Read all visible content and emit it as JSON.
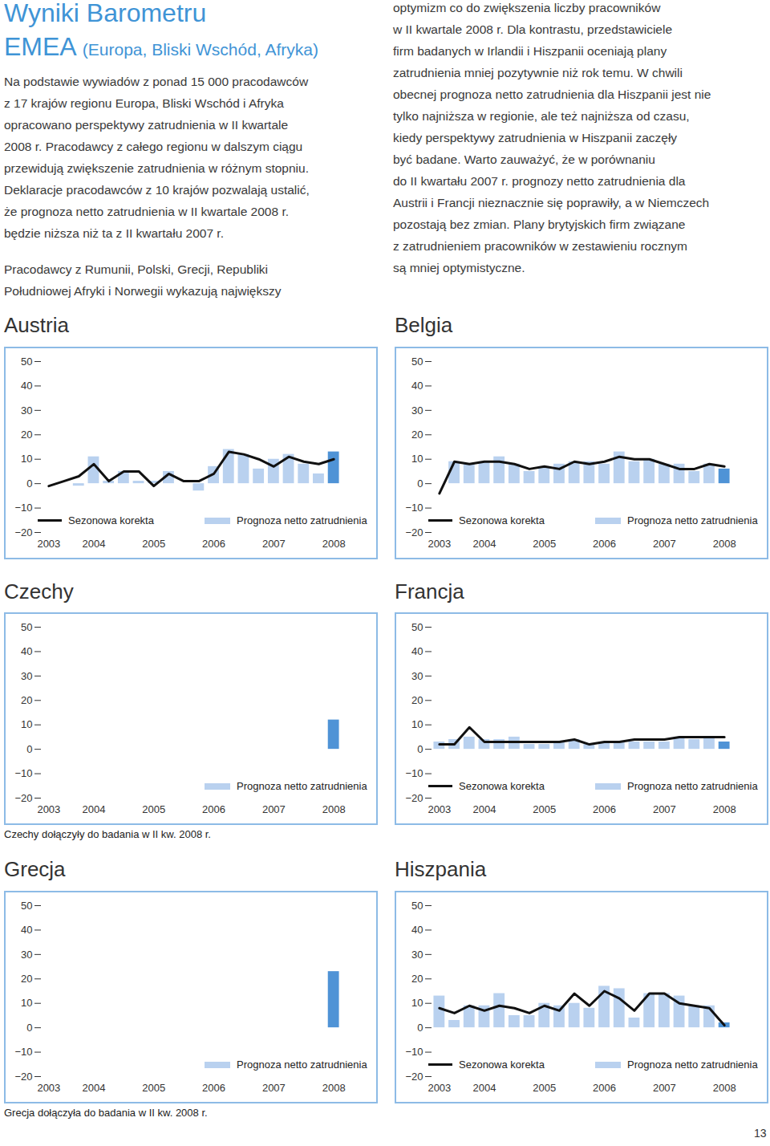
{
  "header": {
    "title": "Wyniki Barometru",
    "title_line2": "EMEA",
    "title_suffix": "(Europa, Bliski Wschód, Afryka)"
  },
  "columns": {
    "left": [
      [
        "Na podstawie wywiadów z ponad 15 000 pracodawców",
        "z 17 krajów regionu Europa, Bliski Wschód i Afryka",
        "opracowano perspektywy zatrudnienia w II kwartale",
        "2008 r. Pracodawcy z całego regionu w dalszym ciągu",
        "przewidują zwiększenie zatrudnienia w różnym stopniu.",
        "Deklaracje pracodawców z 10 krajów pozwalają ustalić,",
        "że prognoza netto zatrudnienia w II kwartale 2008 r.",
        "będzie niższa niż ta z II kwartału 2007 r."
      ],
      [
        "Pracodawcy z Rumunii, Polski, Grecji, Republiki",
        "Południowej Afryki i Norwegii wykazują największy"
      ]
    ],
    "right": [
      [
        "optymizm co do zwiększenia liczby pracowników",
        "w II kwartale 2008 r. Dla kontrastu, przedstawiciele",
        "firm badanych w Irlandii i Hiszpanii oceniają plany",
        "zatrudnienia mniej pozytywnie niż rok temu. W chwili",
        "obecnej prognoza netto zatrudnienia dla Hiszpanii jest nie",
        "tylko najniższa w regionie, ale też najniższa od czasu,",
        "kiedy perspektywy zatrudnienia w Hiszpanii zaczęły",
        "być badane. Warto zauważyć, że w porównaniu",
        "do II kwartału 2007 r. prognozy netto zatrudnienia dla",
        "Austrii i Francji nieznacznie się poprawiły, a w Niemczech",
        "pozostają bez zmian. Plany brytyjskich firm związane",
        "z zatrudnieniem pracowników w zestawieniu rocznym",
        "są mniej optymistyczne."
      ]
    ]
  },
  "chart_data": [
    {
      "type": "bar",
      "title": "Austria",
      "categories": [
        "2003",
        null,
        null,
        "2004",
        null,
        null,
        null,
        "2005",
        null,
        null,
        null,
        "2006",
        null,
        null,
        null,
        "2007",
        null,
        null,
        null,
        "2008"
      ],
      "ylim": [
        -20,
        50
      ],
      "yticks": [
        -20,
        -10,
        0,
        10,
        20,
        30,
        40,
        50
      ],
      "series": [
        {
          "name": "Sezonowa korekta",
          "type": "line",
          "color": "#111111",
          "values": [
            -1,
            1,
            3,
            8,
            1,
            5,
            5,
            -1,
            4,
            1,
            1,
            4,
            13,
            12,
            10,
            7,
            11,
            9,
            8,
            10
          ]
        },
        {
          "name": "Prognoza netto zatrudnienia",
          "type": "bar",
          "color": "#b9d1ef",
          "colors": [
            "#b9d1ef",
            "#b9d1ef",
            "#b9d1ef",
            "#b9d1ef",
            "#b9d1ef",
            "#b9d1ef",
            "#b9d1ef",
            "#b9d1ef",
            "#b9d1ef",
            "#b9d1ef",
            "#b9d1ef",
            "#b9d1ef",
            "#b9d1ef",
            "#b9d1ef",
            "#b9d1ef",
            "#b9d1ef",
            "#b9d1ef",
            "#b9d1ef",
            "#b9d1ef",
            "#4f93d6"
          ],
          "values": [
            null,
            null,
            -1,
            11,
            1,
            5,
            1,
            1,
            5,
            0,
            -3,
            7,
            14,
            12,
            6,
            10,
            12,
            8,
            4,
            13
          ]
        }
      ]
    },
    {
      "type": "bar",
      "title": "Belgia",
      "categories": [
        "2003",
        null,
        null,
        "2004",
        null,
        null,
        null,
        "2005",
        null,
        null,
        null,
        "2006",
        null,
        null,
        null,
        "2007",
        null,
        null,
        null,
        "2008"
      ],
      "ylim": [
        -20,
        50
      ],
      "yticks": [
        -20,
        -10,
        0,
        10,
        20,
        30,
        40,
        50
      ],
      "series": [
        {
          "name": "Sezonowa korekta",
          "type": "line",
          "color": "#111111",
          "values": [
            -4,
            9,
            8,
            9,
            9,
            8,
            6,
            7,
            6,
            9,
            8,
            9,
            11,
            10,
            10,
            8,
            6,
            6,
            8,
            7
          ]
        },
        {
          "name": "Prognoza netto zatrudnienia",
          "type": "bar",
          "color": "#b9d1ef",
          "colors": [
            "#b9d1ef",
            "#b9d1ef",
            "#b9d1ef",
            "#b9d1ef",
            "#b9d1ef",
            "#b9d1ef",
            "#b9d1ef",
            "#b9d1ef",
            "#b9d1ef",
            "#b9d1ef",
            "#b9d1ef",
            "#b9d1ef",
            "#b9d1ef",
            "#b9d1ef",
            "#b9d1ef",
            "#b9d1ef",
            "#b9d1ef",
            "#b9d1ef",
            "#b9d1ef",
            "#4f93d6"
          ],
          "values": [
            null,
            9,
            8,
            9,
            11,
            8,
            5,
            7,
            8,
            9,
            9,
            8,
            13,
            9,
            10,
            8,
            8,
            5,
            8,
            6
          ]
        }
      ]
    },
    {
      "type": "bar",
      "title": "Czechy",
      "caption": "Czechy dołączyły do badania w II kw. 2008 r.",
      "categories": [
        "2003",
        null,
        null,
        "2004",
        null,
        null,
        null,
        "2005",
        null,
        null,
        null,
        "2006",
        null,
        null,
        null,
        "2007",
        null,
        null,
        null,
        "2008"
      ],
      "ylim": [
        -20,
        50
      ],
      "yticks": [
        -20,
        -10,
        0,
        10,
        20,
        30,
        40,
        50
      ],
      "series": [
        {
          "name": "Prognoza netto zatrudnienia",
          "type": "bar",
          "color": "#b9d1ef",
          "colors": [
            "#b9d1ef",
            "#b9d1ef",
            "#b9d1ef",
            "#b9d1ef",
            "#b9d1ef",
            "#b9d1ef",
            "#b9d1ef",
            "#b9d1ef",
            "#b9d1ef",
            "#b9d1ef",
            "#b9d1ef",
            "#b9d1ef",
            "#b9d1ef",
            "#b9d1ef",
            "#b9d1ef",
            "#b9d1ef",
            "#b9d1ef",
            "#b9d1ef",
            "#b9d1ef",
            "#4f93d6"
          ],
          "values": [
            null,
            null,
            null,
            null,
            null,
            null,
            null,
            null,
            null,
            null,
            null,
            null,
            null,
            null,
            null,
            null,
            null,
            null,
            null,
            12
          ]
        }
      ]
    },
    {
      "type": "bar",
      "title": "Francja",
      "categories": [
        "2003",
        null,
        null,
        "2004",
        null,
        null,
        null,
        "2005",
        null,
        null,
        null,
        "2006",
        null,
        null,
        null,
        "2007",
        null,
        null,
        null,
        "2008"
      ],
      "ylim": [
        -20,
        50
      ],
      "yticks": [
        -20,
        -10,
        0,
        10,
        20,
        30,
        40,
        50
      ],
      "series": [
        {
          "name": "Sezonowa korekta",
          "type": "line",
          "color": "#111111",
          "values": [
            2,
            2,
            9,
            3,
            3,
            3,
            3,
            3,
            3,
            4,
            2,
            3,
            3,
            4,
            4,
            4,
            5,
            5,
            5,
            5
          ]
        },
        {
          "name": "Prognoza netto zatrudnienia",
          "type": "bar",
          "color": "#b9d1ef",
          "colors": [
            "#b9d1ef",
            "#b9d1ef",
            "#b9d1ef",
            "#b9d1ef",
            "#b9d1ef",
            "#b9d1ef",
            "#b9d1ef",
            "#b9d1ef",
            "#b9d1ef",
            "#b9d1ef",
            "#b9d1ef",
            "#b9d1ef",
            "#b9d1ef",
            "#b9d1ef",
            "#b9d1ef",
            "#b9d1ef",
            "#b9d1ef",
            "#b9d1ef",
            "#b9d1ef",
            "#4f93d6"
          ],
          "values": [
            3,
            4,
            5,
            4,
            4,
            5,
            2,
            2,
            3,
            4,
            2,
            3,
            3,
            3,
            3,
            3,
            5,
            4,
            5,
            3
          ]
        }
      ]
    },
    {
      "type": "bar",
      "title": "Grecja",
      "caption": "Grecja dołączyła do badania w II kw. 2008 r.",
      "categories": [
        "2003",
        null,
        null,
        "2004",
        null,
        null,
        null,
        "2005",
        null,
        null,
        null,
        "2006",
        null,
        null,
        null,
        "2007",
        null,
        null,
        null,
        "2008"
      ],
      "ylim": [
        -20,
        50
      ],
      "yticks": [
        -20,
        -10,
        0,
        10,
        20,
        30,
        40,
        50
      ],
      "series": [
        {
          "name": "Prognoza netto zatrudnienia",
          "type": "bar",
          "color": "#b9d1ef",
          "colors": [
            "#b9d1ef",
            "#b9d1ef",
            "#b9d1ef",
            "#b9d1ef",
            "#b9d1ef",
            "#b9d1ef",
            "#b9d1ef",
            "#b9d1ef",
            "#b9d1ef",
            "#b9d1ef",
            "#b9d1ef",
            "#b9d1ef",
            "#b9d1ef",
            "#b9d1ef",
            "#b9d1ef",
            "#b9d1ef",
            "#b9d1ef",
            "#b9d1ef",
            "#b9d1ef",
            "#4f93d6"
          ],
          "values": [
            null,
            null,
            null,
            null,
            null,
            null,
            null,
            null,
            null,
            null,
            null,
            null,
            null,
            null,
            null,
            null,
            null,
            null,
            null,
            23
          ]
        }
      ]
    },
    {
      "type": "bar",
      "title": "Hiszpania",
      "categories": [
        "2003",
        null,
        null,
        "2004",
        null,
        null,
        null,
        "2005",
        null,
        null,
        null,
        "2006",
        null,
        null,
        null,
        "2007",
        null,
        null,
        null,
        "2008"
      ],
      "ylim": [
        -20,
        50
      ],
      "yticks": [
        -20,
        -10,
        0,
        10,
        20,
        30,
        40,
        50
      ],
      "series": [
        {
          "name": "Sezonowa korekta",
          "type": "line",
          "color": "#111111",
          "values": [
            8,
            6,
            9,
            7,
            9,
            8,
            6,
            9,
            7,
            14,
            9,
            15,
            12,
            7,
            14,
            14,
            10,
            9,
            8,
            1
          ]
        },
        {
          "name": "Prognoza netto zatrudnienia",
          "type": "bar",
          "color": "#b9d1ef",
          "colors": [
            "#b9d1ef",
            "#b9d1ef",
            "#b9d1ef",
            "#b9d1ef",
            "#b9d1ef",
            "#b9d1ef",
            "#b9d1ef",
            "#b9d1ef",
            "#b9d1ef",
            "#b9d1ef",
            "#b9d1ef",
            "#b9d1ef",
            "#b9d1ef",
            "#b9d1ef",
            "#b9d1ef",
            "#b9d1ef",
            "#b9d1ef",
            "#b9d1ef",
            "#b9d1ef",
            "#4f93d6"
          ],
          "values": [
            13,
            3,
            9,
            9,
            14,
            5,
            5,
            10,
            9,
            10,
            8,
            17,
            16,
            4,
            14,
            14,
            13,
            9,
            9,
            2
          ]
        }
      ]
    }
  ],
  "page_number": "13"
}
